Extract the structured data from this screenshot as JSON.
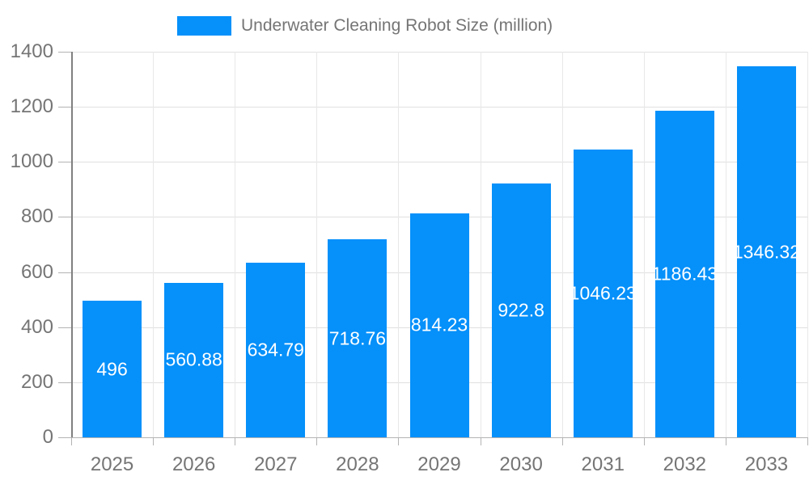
{
  "legend": {
    "label": "Underwater Cleaning Robot Size (million)"
  },
  "chart_data": {
    "type": "bar",
    "title": "Underwater Cleaning Robot Size (million)",
    "categories": [
      "2025",
      "2026",
      "2027",
      "2028",
      "2029",
      "2030",
      "2031",
      "2032",
      "2033"
    ],
    "values": [
      496,
      560.88,
      634.79,
      718.76,
      814.23,
      922.8,
      1046.23,
      1186.43,
      1346.32
    ],
    "value_labels": [
      "496",
      "560.88",
      "634.79",
      "718.76",
      "814.23",
      "922.8",
      "1046.23",
      "1186.43",
      "1346.32"
    ],
    "xlabel": "",
    "ylabel": "",
    "ylim": [
      0,
      1400
    ],
    "yticks": [
      0,
      200,
      400,
      600,
      800,
      1000,
      1200,
      1400
    ],
    "grid": true,
    "legend_position": "top",
    "series_name": "Underwater Cleaning Robot Size (million)"
  },
  "colors": {
    "bar": "#0590FA",
    "value_label": "#ffffff",
    "axis_text": "#757575",
    "grid_horizontal": "#e0e0e0",
    "grid_vertical": "#e8e8e8",
    "axis_line": "#808080",
    "baseline": "#b3b3b3",
    "tick": "#b3b3b3",
    "background": "#ffffff"
  }
}
